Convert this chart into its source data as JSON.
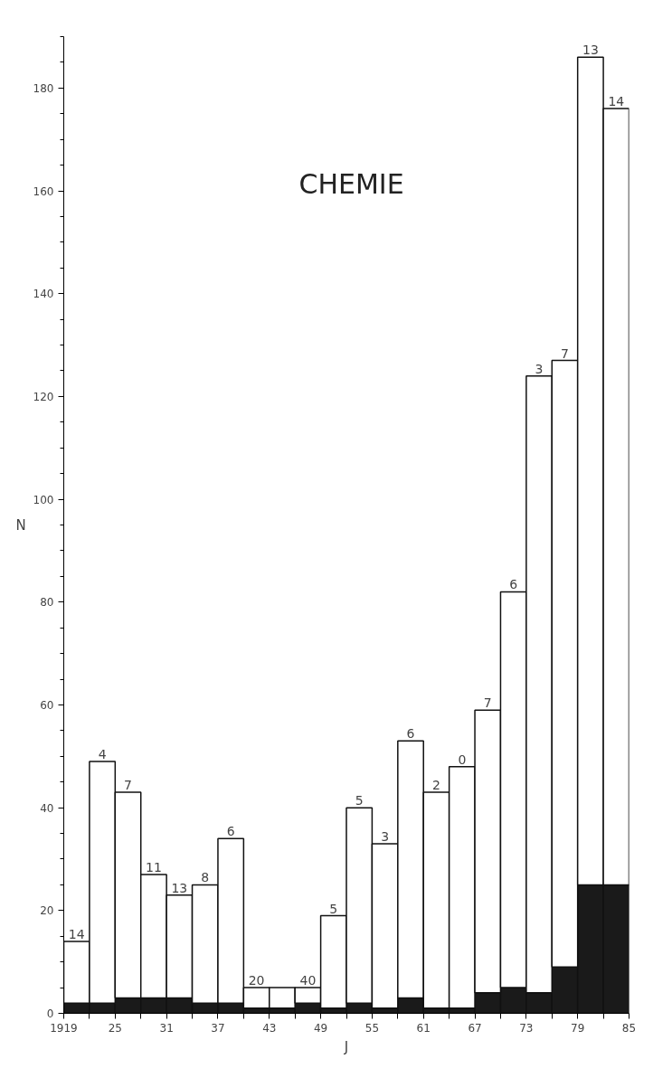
{
  "chart_data": {
    "type": "bar",
    "stacked": true,
    "title": "CHEMIE",
    "xlabel": "J",
    "ylabel": "N",
    "x": [
      1920.5,
      1923.5,
      1926.5,
      1929.5,
      1932.5,
      1935.5,
      1938.5,
      1941.5,
      1944.5,
      1947.5,
      1950.5,
      1953.5,
      1956.5,
      1959.5,
      1962.5,
      1965.5,
      1968.5,
      1971.5,
      1974.5,
      1977.5,
      1980.5,
      1983.5
    ],
    "series": [
      {
        "color": "#1a1a1a",
        "values": [
          2,
          2,
          3,
          3,
          3,
          2,
          2,
          1,
          1,
          2,
          1,
          2,
          1,
          3,
          1,
          1,
          4,
          5,
          4,
          9,
          25,
          25
        ]
      },
      {
        "color": "#ffffff",
        "values": [
          12,
          47,
          40,
          24,
          20,
          23,
          32,
          4,
          4,
          3,
          18,
          38,
          32,
          50,
          42,
          47,
          55,
          77,
          120,
          118,
          161,
          151
        ]
      }
    ],
    "annotations": [
      {
        "text": "14",
        "x": 1920.5,
        "y": 14
      },
      {
        "text": "4",
        "x": 1923.5,
        "y": 49
      },
      {
        "text": "7",
        "x": 1926.5,
        "y": 43
      },
      {
        "text": "11",
        "x": 1929.5,
        "y": 27
      },
      {
        "text": "13",
        "x": 1932.5,
        "y": 23
      },
      {
        "text": "8",
        "x": 1935.5,
        "y": 25
      },
      {
        "text": "6",
        "x": 1938.5,
        "y": 34
      },
      {
        "text": "20",
        "x": 1941.5,
        "y": 5
      },
      {
        "text": "40",
        "x": 1947.5,
        "y": 5
      },
      {
        "text": "5",
        "x": 1950.5,
        "y": 19
      },
      {
        "text": "5",
        "x": 1953.5,
        "y": 40
      },
      {
        "text": "3",
        "x": 1956.5,
        "y": 33
      },
      {
        "text": "6",
        "x": 1959.5,
        "y": 53
      },
      {
        "text": "2",
        "x": 1962.5,
        "y": 43
      },
      {
        "text": "0",
        "x": 1965.5,
        "y": 48
      },
      {
        "text": "7",
        "x": 1968.5,
        "y": 59
      },
      {
        "text": "6",
        "x": 1971.5,
        "y": 82
      },
      {
        "text": "3",
        "x": 1974.5,
        "y": 124
      },
      {
        "text": "7",
        "x": 1977.5,
        "y": 127
      },
      {
        "text": "13",
        "x": 1980.5,
        "y": 186
      },
      {
        "text": "14",
        "x": 1983.5,
        "y": 176
      }
    ],
    "xlim": [
      1919,
      1985
    ],
    "xticks": [
      {
        "value": 1919,
        "label": "1919"
      },
      {
        "value": 1922,
        "label": null
      },
      {
        "value": 1925,
        "label": "25"
      },
      {
        "value": 1928,
        "label": null
      },
      {
        "value": 1931,
        "label": "31"
      },
      {
        "value": 1934,
        "label": null
      },
      {
        "value": 1937,
        "label": "37"
      },
      {
        "value": 1940,
        "label": null
      },
      {
        "value": 1943,
        "label": "43"
      },
      {
        "value": 1946,
        "label": null
      },
      {
        "value": 1949,
        "label": "49"
      },
      {
        "value": 1952,
        "label": null
      },
      {
        "value": 1955,
        "label": "55"
      },
      {
        "value": 1958,
        "label": null
      },
      {
        "value": 1961,
        "label": "61"
      },
      {
        "value": 1964,
        "label": null
      },
      {
        "value": 1967,
        "label": "67"
      },
      {
        "value": 1970,
        "label": null
      },
      {
        "value": 1973,
        "label": "73"
      },
      {
        "value": 1976,
        "label": null
      },
      {
        "value": 1979,
        "label": "79"
      },
      {
        "value": 1982,
        "label": null
      },
      {
        "value": 1985,
        "label": "85"
      }
    ],
    "ylim": [
      0,
      190
    ],
    "yticks": [
      0,
      20,
      40,
      60,
      80,
      100,
      120,
      140,
      160,
      180
    ],
    "grid": false
  }
}
